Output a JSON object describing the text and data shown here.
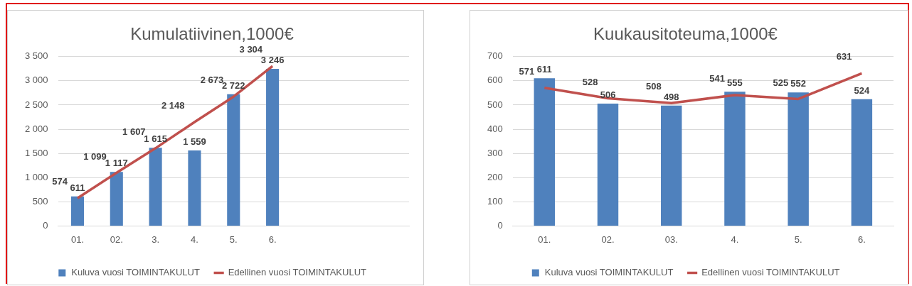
{
  "chart_data": [
    {
      "type": "bar",
      "title": "Kumulatiivinen,1000€",
      "categories": [
        "01.",
        "02.",
        "3.",
        "4.",
        "5.",
        "6.",
        null,
        null,
        null
      ],
      "series": [
        {
          "name": "Kuluva vuosi TOIMINTAKULUT",
          "color": "#4f81bd",
          "values": [
            611,
            1117,
            1615,
            1559,
            2722,
            3246,
            null,
            null,
            null
          ]
        },
        {
          "name": "Edellinen vuosi TOIMINTAKULUT",
          "type": "line",
          "color": "#c0504d",
          "values": [
            574,
            1099,
            1607,
            2148,
            2673,
            3304,
            null,
            null,
            null
          ]
        }
      ],
      "ylim": [
        0,
        3500
      ],
      "yticks": [
        {
          "value": 0,
          "label": "0"
        },
        {
          "value": 500,
          "label": "500"
        },
        {
          "value": 1000,
          "label": "1 000"
        },
        {
          "value": 1500,
          "label": "1 500"
        },
        {
          "value": 2000,
          "label": "2 000"
        },
        {
          "value": 2500,
          "label": "2 500"
        },
        {
          "value": 3000,
          "label": "3 000"
        },
        {
          "value": 3500,
          "label": "3 500"
        }
      ],
      "grid": "y",
      "legend": "bottom",
      "marker": "none",
      "data_labels": true
    },
    {
      "type": "bar",
      "title": "Kuukausitoteuma,1000€",
      "categories": [
        "01.",
        "02.",
        "03.",
        "4.",
        "5.",
        "6."
      ],
      "series": [
        {
          "name": "Kuluva vuosi TOIMINTAKULUT",
          "color": "#4f81bd",
          "values": [
            611,
            506,
            498,
            555,
            552,
            524
          ]
        },
        {
          "name": "Edellinen vuosi TOIMINTAKULUT",
          "type": "line",
          "color": "#c0504d",
          "values": [
            571,
            528,
            508,
            541,
            525,
            631
          ]
        }
      ],
      "ylim": [
        0,
        700
      ],
      "yticks": [
        0,
        100,
        200,
        300,
        400,
        500,
        600,
        700
      ],
      "grid": "y",
      "legend": "bottom",
      "marker": "none",
      "data_labels": true
    }
  ]
}
